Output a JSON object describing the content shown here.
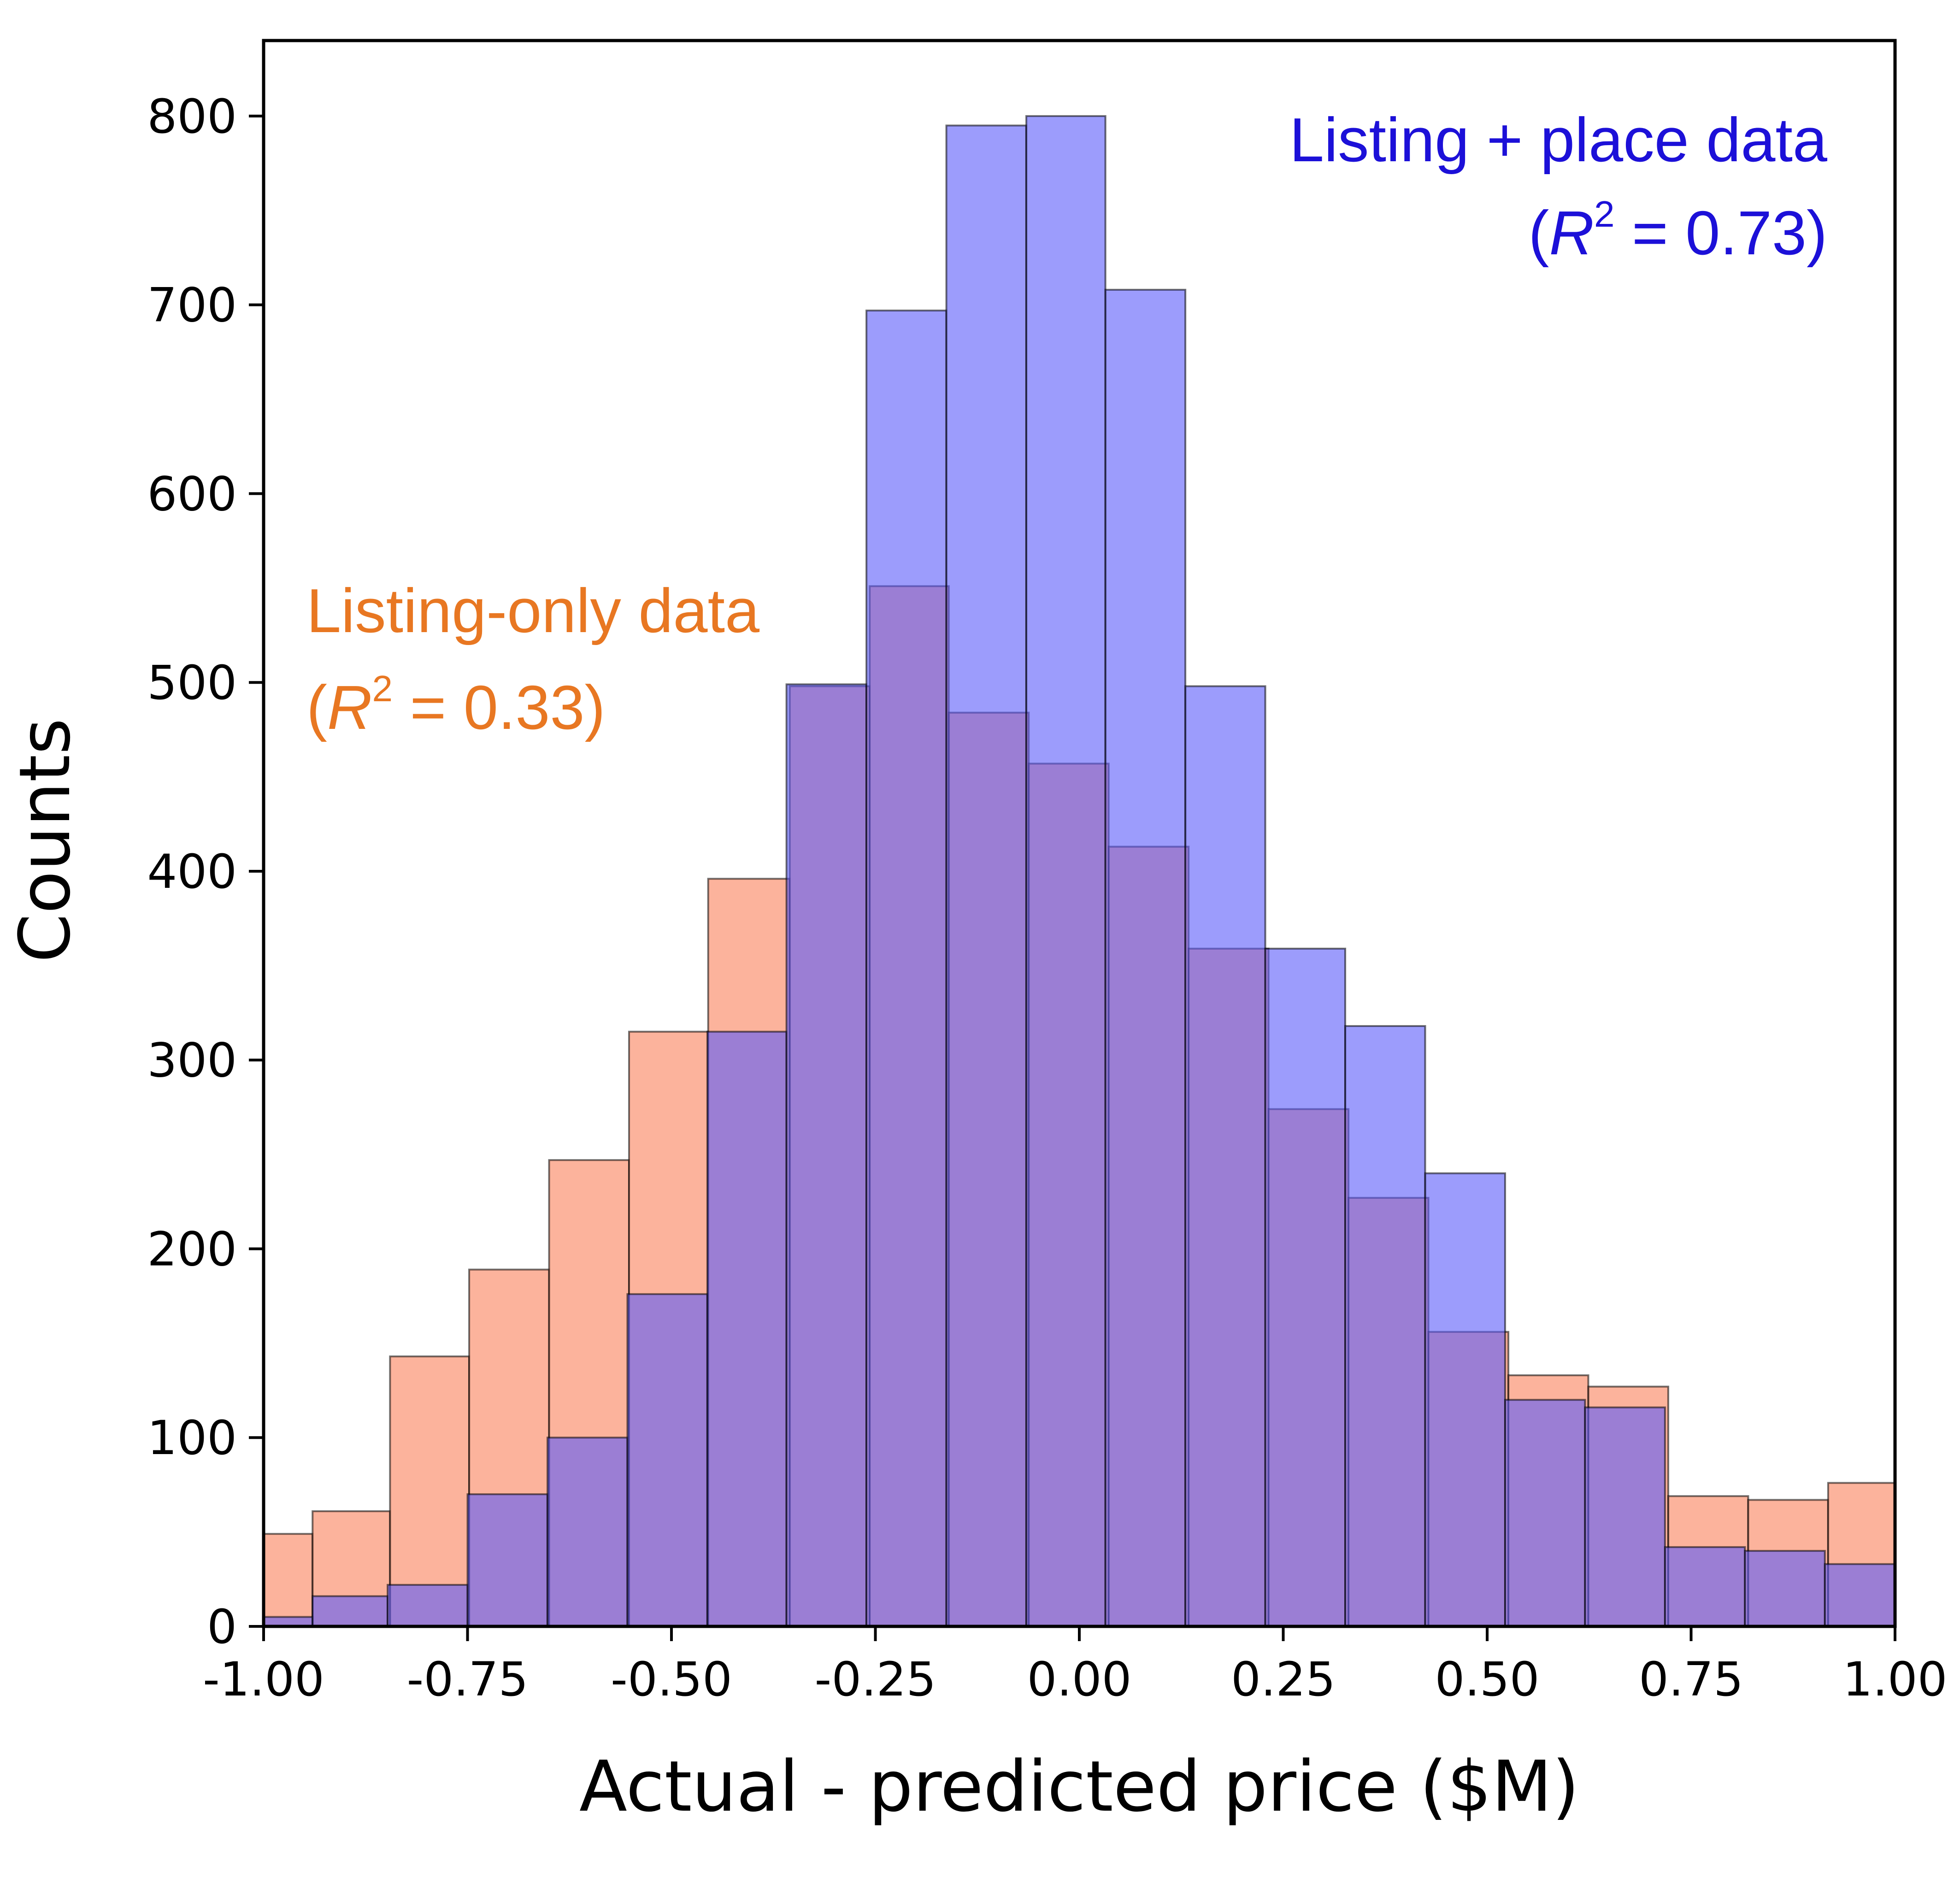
{
  "chart_data": {
    "type": "bar",
    "title": "",
    "xlabel": "Actual - predicted price ($M)",
    "ylabel": "Counts",
    "xlim": [
      -1.0,
      1.0
    ],
    "ylim": [
      0,
      840
    ],
    "xticks": [
      -1.0,
      -0.75,
      -0.5,
      -0.25,
      0.0,
      0.25,
      0.5,
      0.75,
      1.0
    ],
    "xtick_labels": [
      "-1.00",
      "-0.75",
      "-0.50",
      "-0.25",
      "0.00",
      "0.25",
      "0.50",
      "0.75",
      "1.00"
    ],
    "yticks": [
      0,
      100,
      200,
      300,
      400,
      500,
      600,
      700,
      800
    ],
    "ytick_labels": [
      "0",
      "100",
      "200",
      "300",
      "400",
      "500",
      "600",
      "700",
      "800"
    ],
    "grid": false,
    "series": [
      {
        "name": "Listing-only data",
        "r2_label": "(R2 = 0.33)",
        "color": "#FA8C69",
        "annotation_color": "#E87722",
        "bins": [
          {
            "x0": -1.0,
            "x1": -0.94,
            "count": 49
          },
          {
            "x0": -0.94,
            "x1": -0.845,
            "count": 61
          },
          {
            "x0": -0.845,
            "x1": -0.748,
            "count": 143
          },
          {
            "x0": -0.748,
            "x1": -0.65,
            "count": 189
          },
          {
            "x0": -0.65,
            "x1": -0.552,
            "count": 247
          },
          {
            "x0": -0.552,
            "x1": -0.455,
            "count": 315
          },
          {
            "x0": -0.455,
            "x1": -0.355,
            "count": 396
          },
          {
            "x0": -0.355,
            "x1": -0.257,
            "count": 498
          },
          {
            "x0": -0.257,
            "x1": -0.16,
            "count": 551
          },
          {
            "x0": -0.16,
            "x1": -0.062,
            "count": 484
          },
          {
            "x0": -0.062,
            "x1": 0.036,
            "count": 457
          },
          {
            "x0": 0.036,
            "x1": 0.134,
            "count": 413
          },
          {
            "x0": 0.134,
            "x1": 0.232,
            "count": 359
          },
          {
            "x0": 0.232,
            "x1": 0.33,
            "count": 274
          },
          {
            "x0": 0.33,
            "x1": 0.428,
            "count": 227
          },
          {
            "x0": 0.428,
            "x1": 0.526,
            "count": 156
          },
          {
            "x0": 0.526,
            "x1": 0.624,
            "count": 133
          },
          {
            "x0": 0.624,
            "x1": 0.722,
            "count": 127
          },
          {
            "x0": 0.722,
            "x1": 0.82,
            "count": 69
          },
          {
            "x0": 0.82,
            "x1": 0.918,
            "count": 67
          },
          {
            "x0": 0.918,
            "x1": 1.0,
            "count": 76
          }
        ]
      },
      {
        "name": "Listing + place data",
        "r2_label": "(R2 = 0.73)",
        "color": "#5A5AFA",
        "annotation_color": "#1C10D8",
        "bins": [
          {
            "x0": -1.0,
            "x1": -0.94,
            "count": 5
          },
          {
            "x0": -0.94,
            "x1": -0.848,
            "count": 16
          },
          {
            "x0": -0.848,
            "x1": -0.75,
            "count": 22
          },
          {
            "x0": -0.75,
            "x1": -0.652,
            "count": 70
          },
          {
            "x0": -0.652,
            "x1": -0.554,
            "count": 100
          },
          {
            "x0": -0.554,
            "x1": -0.456,
            "count": 176
          },
          {
            "x0": -0.456,
            "x1": -0.359,
            "count": 315
          },
          {
            "x0": -0.359,
            "x1": -0.261,
            "count": 499
          },
          {
            "x0": -0.261,
            "x1": -0.163,
            "count": 697
          },
          {
            "x0": -0.163,
            "x1": -0.065,
            "count": 795
          },
          {
            "x0": -0.065,
            "x1": 0.032,
            "count": 800
          },
          {
            "x0": 0.032,
            "x1": 0.13,
            "count": 708
          },
          {
            "x0": 0.13,
            "x1": 0.228,
            "count": 498
          },
          {
            "x0": 0.228,
            "x1": 0.326,
            "count": 359
          },
          {
            "x0": 0.326,
            "x1": 0.424,
            "count": 318
          },
          {
            "x0": 0.424,
            "x1": 0.522,
            "count": 240
          },
          {
            "x0": 0.522,
            "x1": 0.62,
            "count": 120
          },
          {
            "x0": 0.62,
            "x1": 0.718,
            "count": 116
          },
          {
            "x0": 0.718,
            "x1": 0.816,
            "count": 42
          },
          {
            "x0": 0.816,
            "x1": 0.914,
            "count": 40
          },
          {
            "x0": 0.914,
            "x1": 1.0,
            "count": 33
          }
        ]
      }
    ],
    "annotations": {
      "listing_only": {
        "line1": "Listing-only data",
        "open": "(",
        "r": "R",
        "sup": "2",
        "rest": " = 0.33)"
      },
      "listing_place": {
        "line1": "Listing + place data",
        "open": "(",
        "r": "R",
        "sup": "2",
        "rest": " = 0.73)"
      }
    }
  }
}
